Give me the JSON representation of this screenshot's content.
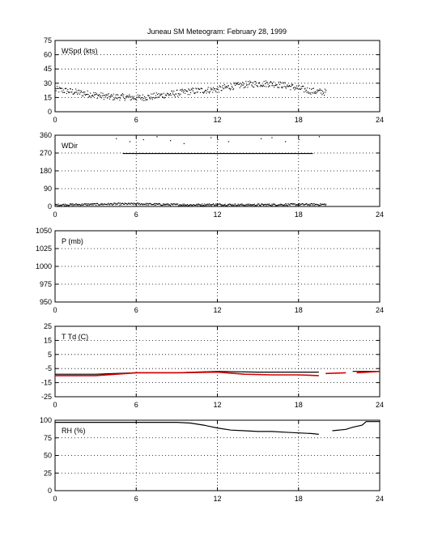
{
  "title": "Juneau SM Meteogram:  February 28, 1999",
  "colors": {
    "ink": "#000000",
    "dewpoint": "#d40000",
    "grid": "#000000"
  },
  "chart_data": [
    {
      "type": "scatter",
      "ylabel": "WSpd (kts)",
      "xlim": [
        0,
        24
      ],
      "ylim": [
        0,
        75
      ],
      "xticks": [
        "0",
        "6",
        "12",
        "18",
        "24"
      ],
      "yticks": [
        "0",
        "15",
        "30",
        "45",
        "60",
        "75"
      ],
      "grid": true,
      "series": [
        {
          "color": "#000000",
          "style": "dots",
          "x": [
            0,
            1,
            2,
            3,
            4,
            5,
            6,
            7,
            8,
            9,
            10,
            11,
            12,
            13,
            14,
            15,
            16,
            17,
            18,
            19,
            20
          ],
          "y": [
            24,
            22,
            20,
            18,
            16,
            16,
            15,
            16,
            18,
            20,
            22,
            23,
            24,
            27,
            29,
            30,
            30,
            28,
            25,
            22,
            21
          ]
        }
      ]
    },
    {
      "type": "scatter",
      "ylabel": "WDir",
      "xlim": [
        0,
        24
      ],
      "ylim": [
        0,
        360
      ],
      "xticks": [
        "0",
        "6",
        "12",
        "18",
        "24"
      ],
      "yticks": [
        "0",
        "90",
        "180",
        "270",
        "360"
      ],
      "grid": true,
      "series": [
        {
          "color": "#000000",
          "style": "dots",
          "x": [
            0,
            2,
            4,
            6,
            8,
            10,
            12,
            14,
            16,
            18,
            20
          ],
          "y": [
            10,
            12,
            14,
            15,
            12,
            10,
            12,
            10,
            11,
            12,
            12
          ]
        },
        {
          "color": "#000000",
          "style": "dots",
          "x": [
            5,
            6,
            7,
            8,
            9,
            10,
            11,
            12,
            13,
            14,
            15,
            16,
            17,
            18,
            19
          ],
          "y": [
            270,
            270,
            270,
            270,
            270,
            270,
            270,
            270,
            270,
            270,
            270,
            270,
            270,
            270,
            270
          ]
        },
        {
          "color": "#000000",
          "style": "dots",
          "x": [
            4.5,
            5.5,
            6.5,
            7.5,
            8.5,
            9.5,
            11.5,
            12.0,
            12.8,
            15.2,
            16.0,
            17.0,
            18.0,
            19.5
          ],
          "y": [
            345,
            330,
            340,
            355,
            335,
            320,
            350,
            340,
            330,
            345,
            350,
            330,
            340,
            355
          ]
        }
      ]
    },
    {
      "type": "line",
      "ylabel": "P (mb)",
      "xlim": [
        0,
        24
      ],
      "ylim": [
        950,
        1050
      ],
      "xticks": [
        "0",
        "6",
        "12",
        "18",
        "24"
      ],
      "yticks": [
        "950",
        "975",
        "1000",
        "1025",
        "1050"
      ],
      "grid": true,
      "series": []
    },
    {
      "type": "line",
      "ylabel": "T Td (C)",
      "xlim": [
        0,
        24
      ],
      "ylim": [
        -25,
        25
      ],
      "xticks": [
        "0",
        "6",
        "12",
        "18",
        "24"
      ],
      "yticks": [
        "-25",
        "-15",
        "-5",
        "5",
        "15",
        "25"
      ],
      "grid": true,
      "series": [
        {
          "color": "#000000",
          "style": "line",
          "x": [
            0,
            3,
            6,
            9,
            12,
            15,
            18,
            19.5
          ],
          "y": [
            -9,
            -9,
            -8,
            -8,
            -7,
            -7.5,
            -7.5,
            -7.5
          ]
        },
        {
          "color": "#000000",
          "style": "line",
          "x": [
            22,
            24
          ],
          "y": [
            -7,
            -7
          ]
        },
        {
          "color": "#d40000",
          "style": "line",
          "x": [
            0,
            3,
            6,
            9,
            12,
            14,
            16,
            18,
            19.5
          ],
          "y": [
            -10,
            -10,
            -8,
            -8,
            -7.5,
            -9,
            -9.5,
            -9.5,
            -10
          ]
        },
        {
          "color": "#d40000",
          "style": "line",
          "x": [
            20,
            21.5
          ],
          "y": [
            -8.5,
            -8
          ]
        },
        {
          "color": "#d40000",
          "style": "line",
          "x": [
            22.3,
            24
          ],
          "y": [
            -8,
            -7
          ]
        }
      ]
    },
    {
      "type": "line",
      "ylabel": "RH (%)",
      "xlim": [
        0,
        24
      ],
      "ylim": [
        0,
        100
      ],
      "xticks": [
        "0",
        "6",
        "12",
        "18",
        "24"
      ],
      "yticks": [
        "0",
        "25",
        "50",
        "75",
        "100"
      ],
      "grid": true,
      "series": [
        {
          "color": "#000000",
          "style": "line",
          "x": [
            0,
            3,
            6,
            9,
            10,
            11,
            12,
            13,
            14,
            15,
            16,
            17,
            18,
            19,
            19.5
          ],
          "y": [
            97,
            97,
            97,
            97,
            96,
            93,
            89,
            86,
            85,
            84,
            84,
            83,
            82,
            81,
            80
          ]
        },
        {
          "color": "#000000",
          "style": "line",
          "x": [
            20.5,
            21.5,
            22,
            22.7,
            23,
            24
          ],
          "y": [
            85,
            87,
            90,
            93,
            98,
            98
          ]
        }
      ]
    }
  ]
}
